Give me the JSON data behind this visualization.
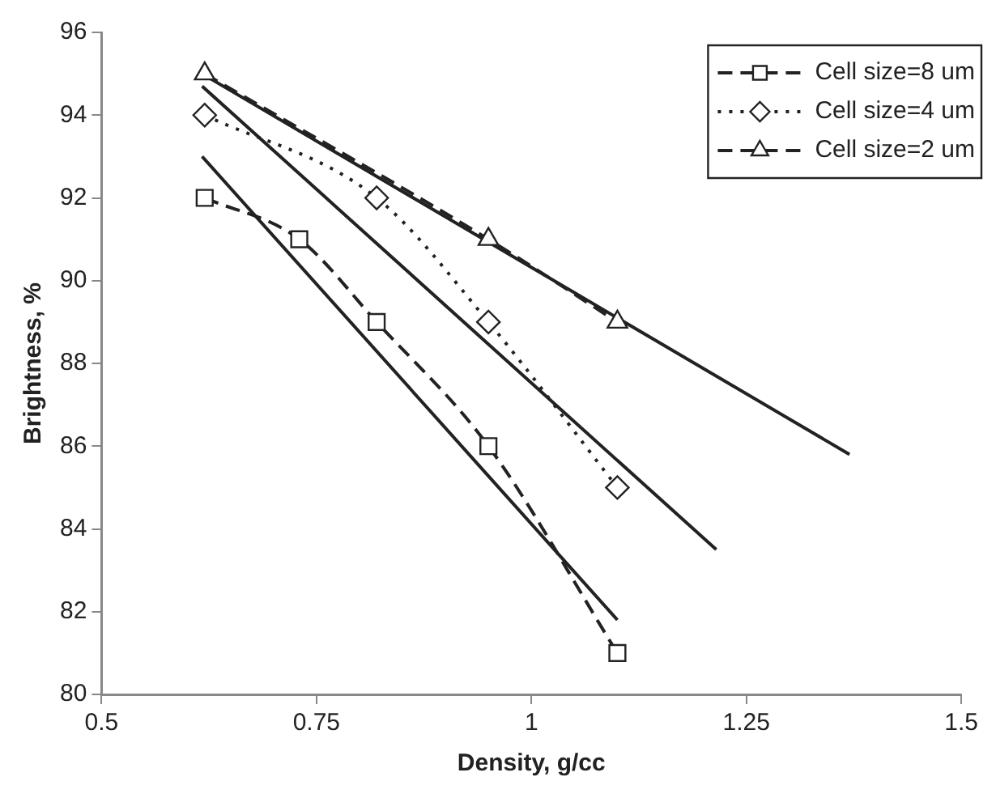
{
  "chart_data": {
    "type": "line",
    "xlabel": "Density, g/cc",
    "ylabel": "Brightness, %",
    "xlim": [
      0.5,
      1.5
    ],
    "xticks": [
      0.5,
      0.75,
      1,
      1.25,
      1.5
    ],
    "ylim": [
      80,
      96
    ],
    "yticks": [
      80,
      82,
      84,
      86,
      88,
      90,
      92,
      94,
      96
    ],
    "grid": false,
    "legend": "top right",
    "series": [
      {
        "name": "Cell size=8 um",
        "color": "#222222",
        "x": [
          0.62,
          0.73,
          0.82,
          0.95,
          1.1
        ],
        "values": [
          92,
          91,
          89,
          86,
          81
        ],
        "marker": "square",
        "line_style": "dashed"
      },
      {
        "name": "Cell size=4 um",
        "color": "#222222",
        "x": [
          0.62,
          0.82,
          0.95,
          1.1
        ],
        "values": [
          94,
          92,
          89,
          85
        ],
        "marker": "diamond",
        "line_style": "dotted"
      },
      {
        "name": "Cell size=2 um",
        "color": "#222222",
        "x": [
          0.62,
          0.95,
          1.1
        ],
        "values": [
          95,
          91,
          89
        ],
        "marker": "triangle",
        "line_style": "dashed"
      },
      {
        "color": "#222222",
        "x": [
          0.617,
          1.1
        ],
        "values": [
          93,
          81.8
        ],
        "marker": "none",
        "line_style": "solid"
      },
      {
        "color": "#222222",
        "x": [
          0.617,
          1.215
        ],
        "values": [
          94.7,
          83.5
        ],
        "marker": "none",
        "line_style": "solid"
      },
      {
        "color": "#222222",
        "x": [
          0.617,
          1.37
        ],
        "values": [
          95,
          85.8
        ],
        "marker": "none",
        "line_style": "solid"
      }
    ]
  }
}
